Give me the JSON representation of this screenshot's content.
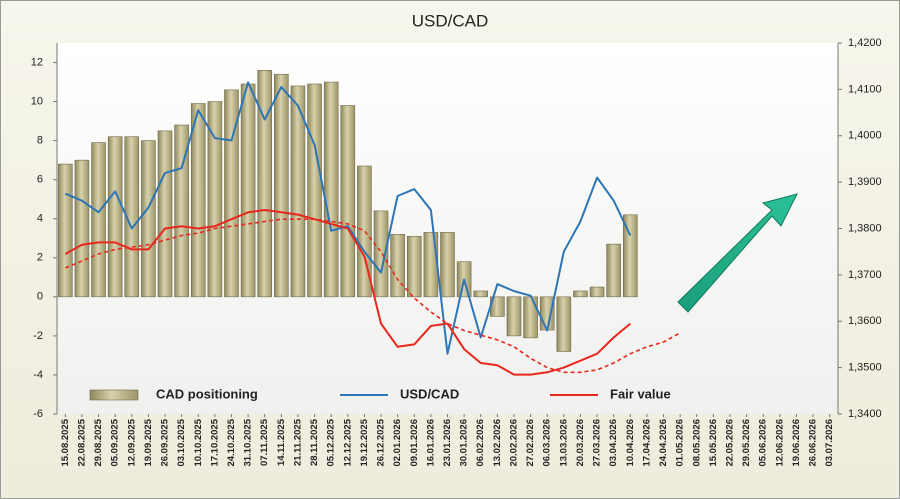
{
  "chart_data": {
    "type": "bar_line",
    "title": "USD/CAD",
    "categories": [
      "15.08.2025",
      "22.08.2025",
      "29.08.2025",
      "05.09.2025",
      "12.09.2025",
      "19.09.2025",
      "26.09.2025",
      "03.10.2025",
      "10.10.2025",
      "17.10.2025",
      "24.10.2025",
      "31.10.2025",
      "07.11.2025",
      "14.11.2025",
      "21.11.2025",
      "28.11.2025",
      "05.12.2025",
      "12.12.2025",
      "19.12.2025",
      "26.12.2025",
      "02.01.2026",
      "09.01.2026",
      "16.01.2026",
      "23.01.2026",
      "30.01.2026",
      "06.02.2026",
      "13.02.2026",
      "20.02.2026",
      "27.02.2026",
      "06.03.2026",
      "13.03.2026",
      "20.03.2026",
      "27.03.2026",
      "03.04.2026",
      "10.04.2026",
      "17.04.2026",
      "24.04.2026",
      "01.05.2026",
      "08.05.2026",
      "15.05.2026",
      "22.05.2026",
      "29.05.2026",
      "05.06.2026",
      "12.06.2026",
      "19.06.2026",
      "26.06.2026",
      "03.07.2026"
    ],
    "series": [
      {
        "name": "CAD positioning",
        "kind": "bar",
        "color": "#bdb58a",
        "values": [
          6.8,
          7.0,
          7.9,
          8.2,
          8.2,
          8.0,
          8.5,
          8.8,
          9.9,
          10.0,
          10.6,
          10.9,
          11.6,
          11.4,
          10.8,
          10.9,
          11.0,
          9.8,
          6.7,
          4.4,
          3.2,
          3.1,
          3.3,
          3.3,
          1.8,
          0.3,
          -1.0,
          -2.0,
          -2.1,
          -1.7,
          -2.8,
          0.3,
          0.5,
          2.7,
          4.2,
          null,
          null,
          null,
          null,
          null,
          null,
          null,
          null,
          null,
          null,
          null,
          null
        ]
      },
      {
        "name": "USD/CAD",
        "kind": "line",
        "axis": "y2",
        "color": "#2e75b6",
        "values": [
          1.3875,
          1.386,
          1.3835,
          1.388,
          1.38,
          1.3845,
          1.392,
          1.393,
          1.4055,
          1.3995,
          1.399,
          1.4115,
          1.4035,
          1.4105,
          1.4065,
          1.398,
          1.3795,
          1.3805,
          1.375,
          1.3705,
          1.387,
          1.3885,
          1.384,
          1.353,
          1.369,
          1.3565,
          1.368,
          1.3665,
          1.3655,
          1.358,
          1.375,
          1.3815,
          1.391,
          1.386,
          1.3785,
          null,
          null,
          null,
          null,
          null,
          null,
          null,
          null,
          null,
          null,
          null,
          null
        ]
      },
      {
        "name": "Fair value",
        "kind": "line",
        "axis": "y2",
        "color": "#e8281e",
        "values": [
          1.3745,
          1.3765,
          1.377,
          1.377,
          1.3755,
          1.3755,
          1.38,
          1.3805,
          1.38,
          1.3805,
          1.382,
          1.3835,
          1.384,
          1.3835,
          1.383,
          1.382,
          1.381,
          1.38,
          1.374,
          1.3595,
          1.3545,
          1.355,
          1.359,
          1.3595,
          1.354,
          1.351,
          1.3505,
          1.3485,
          1.3485,
          1.349,
          1.35,
          1.3515,
          1.353,
          1.3565,
          1.3595,
          null,
          null,
          null,
          null,
          null,
          null,
          null,
          null,
          null,
          null,
          null,
          null
        ]
      },
      {
        "kind": "line",
        "axis": "y2",
        "color": "#e8281e",
        "dashed": true,
        "values": [
          1.3715,
          1.373,
          1.3745,
          1.3755,
          1.376,
          1.3765,
          1.3775,
          1.3785,
          1.379,
          1.38,
          1.3805,
          1.381,
          1.3815,
          1.382,
          1.382,
          1.382,
          1.3815,
          1.381,
          1.3795,
          1.375,
          1.369,
          1.365,
          1.362,
          1.3595,
          1.358,
          1.357,
          1.356,
          1.3545,
          1.352,
          1.35,
          1.349,
          1.349,
          1.3495,
          1.351,
          1.353,
          1.3545,
          1.3555,
          1.3575,
          null,
          null,
          null,
          null,
          null,
          null,
          null,
          null,
          null
        ]
      }
    ],
    "ylim": [
      -6,
      13
    ],
    "yticks": [
      -6,
      -4,
      -2,
      0,
      2,
      4,
      6,
      8,
      10,
      12
    ],
    "y2lim": [
      1.34,
      1.42
    ],
    "y2ticks": [
      {
        "value": 1.34,
        "label": "1,3400"
      },
      {
        "value": 1.35,
        "label": "1,3500"
      },
      {
        "value": 1.36,
        "label": "1,3600"
      },
      {
        "value": 1.37,
        "label": "1,3700"
      },
      {
        "value": 1.38,
        "label": "1,3800"
      },
      {
        "value": 1.39,
        "label": "1,3900"
      },
      {
        "value": 1.4,
        "label": "1,4000"
      },
      {
        "value": 1.41,
        "label": "1,4100"
      },
      {
        "value": 1.42,
        "label": "1,4200"
      }
    ]
  }
}
